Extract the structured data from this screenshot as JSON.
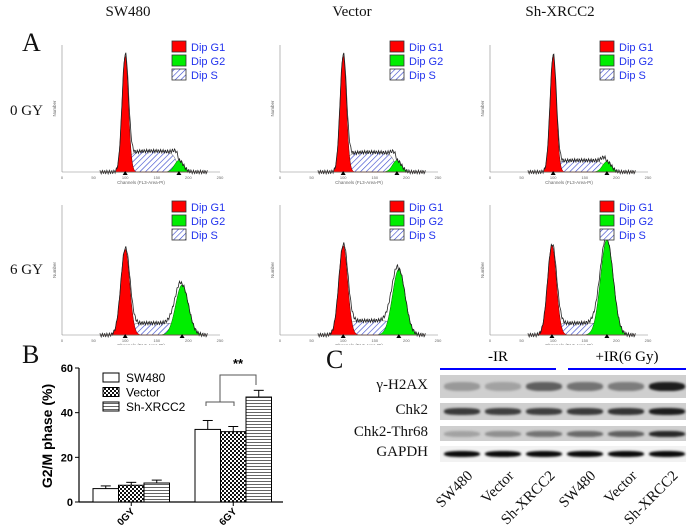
{
  "panel_a": {
    "letter": "A",
    "columns": [
      "SW480",
      "Vector",
      "Sh-XRCC2"
    ],
    "rows": [
      "0 GY",
      "6 GY"
    ],
    "legend": [
      {
        "label": "Dip G1",
        "color": "#ff0000"
      },
      {
        "label": "Dip G2",
        "color": "#00ee00"
      },
      {
        "label": "Dip S",
        "pattern": "hatch"
      }
    ],
    "xlabel": "Channels (FL3-Area-PI)",
    "ylabel": "Number",
    "x_ticks": [
      0,
      50,
      100,
      150,
      200,
      250
    ],
    "histograms": [
      [
        {
          "g1_peak": 100,
          "g1_height": 1.0,
          "g2_peak": 185,
          "g2_height": 0.1,
          "s_level": 0.18
        },
        {
          "g1_peak": 100,
          "g1_height": 1.0,
          "g2_peak": 185,
          "g2_height": 0.1,
          "s_level": 0.17
        },
        {
          "g1_peak": 100,
          "g1_height": 1.0,
          "g2_peak": 185,
          "g2_height": 0.09,
          "s_level": 0.1
        }
      ],
      [
        {
          "g1_peak": 100,
          "g1_height": 0.72,
          "g2_peak": 190,
          "g2_height": 0.42,
          "s_level": 0.1
        },
        {
          "g1_peak": 100,
          "g1_height": 0.75,
          "g2_peak": 188,
          "g2_height": 0.55,
          "s_level": 0.12
        },
        {
          "g1_peak": 98,
          "g1_height": 0.75,
          "g2_peak": 185,
          "g2_height": 0.8,
          "s_level": 0.1
        }
      ]
    ]
  },
  "panel_b": {
    "letter": "B"
  },
  "chart_data": {
    "type": "bar",
    "categories": [
      "0GY",
      "6GY"
    ],
    "ylabel": "G2/M phase (%)",
    "ylim": [
      0,
      60
    ],
    "y_ticks": [
      0,
      20,
      40,
      60
    ],
    "legend_position": "top-left",
    "series": [
      {
        "name": "SW480",
        "values": [
          6,
          32.5
        ],
        "errors": [
          1.2,
          4
        ],
        "pattern": "open"
      },
      {
        "name": "Vector",
        "values": [
          7.5,
          31.5
        ],
        "errors": [
          1.3,
          2.3
        ],
        "pattern": "checker"
      },
      {
        "name": "Sh-XRCC2",
        "values": [
          8.5,
          47
        ],
        "errors": [
          1.3,
          3
        ],
        "pattern": "horizontal-stripes"
      }
    ],
    "annotation": "**"
  },
  "panel_c": {
    "letter": "C",
    "groups": [
      "-IR",
      "+IR(6 Gy)"
    ],
    "group_line_color": "#0000ff",
    "proteins": [
      "γ-H2AX",
      "Chk2",
      "Chk2-Thr68",
      "GAPDH"
    ],
    "lanes": [
      "SW480",
      "Vector",
      "Sh-XRCC2",
      "SW480",
      "Vector",
      "Sh-XRCC2"
    ],
    "band_intensity": [
      [
        0.25,
        0.2,
        0.55,
        0.45,
        0.4,
        0.9
      ],
      [
        0.75,
        0.72,
        0.72,
        0.75,
        0.78,
        0.9
      ],
      [
        0.2,
        0.3,
        0.45,
        0.5,
        0.55,
        0.85
      ],
      [
        1,
        1,
        1,
        1,
        1,
        1
      ]
    ]
  }
}
